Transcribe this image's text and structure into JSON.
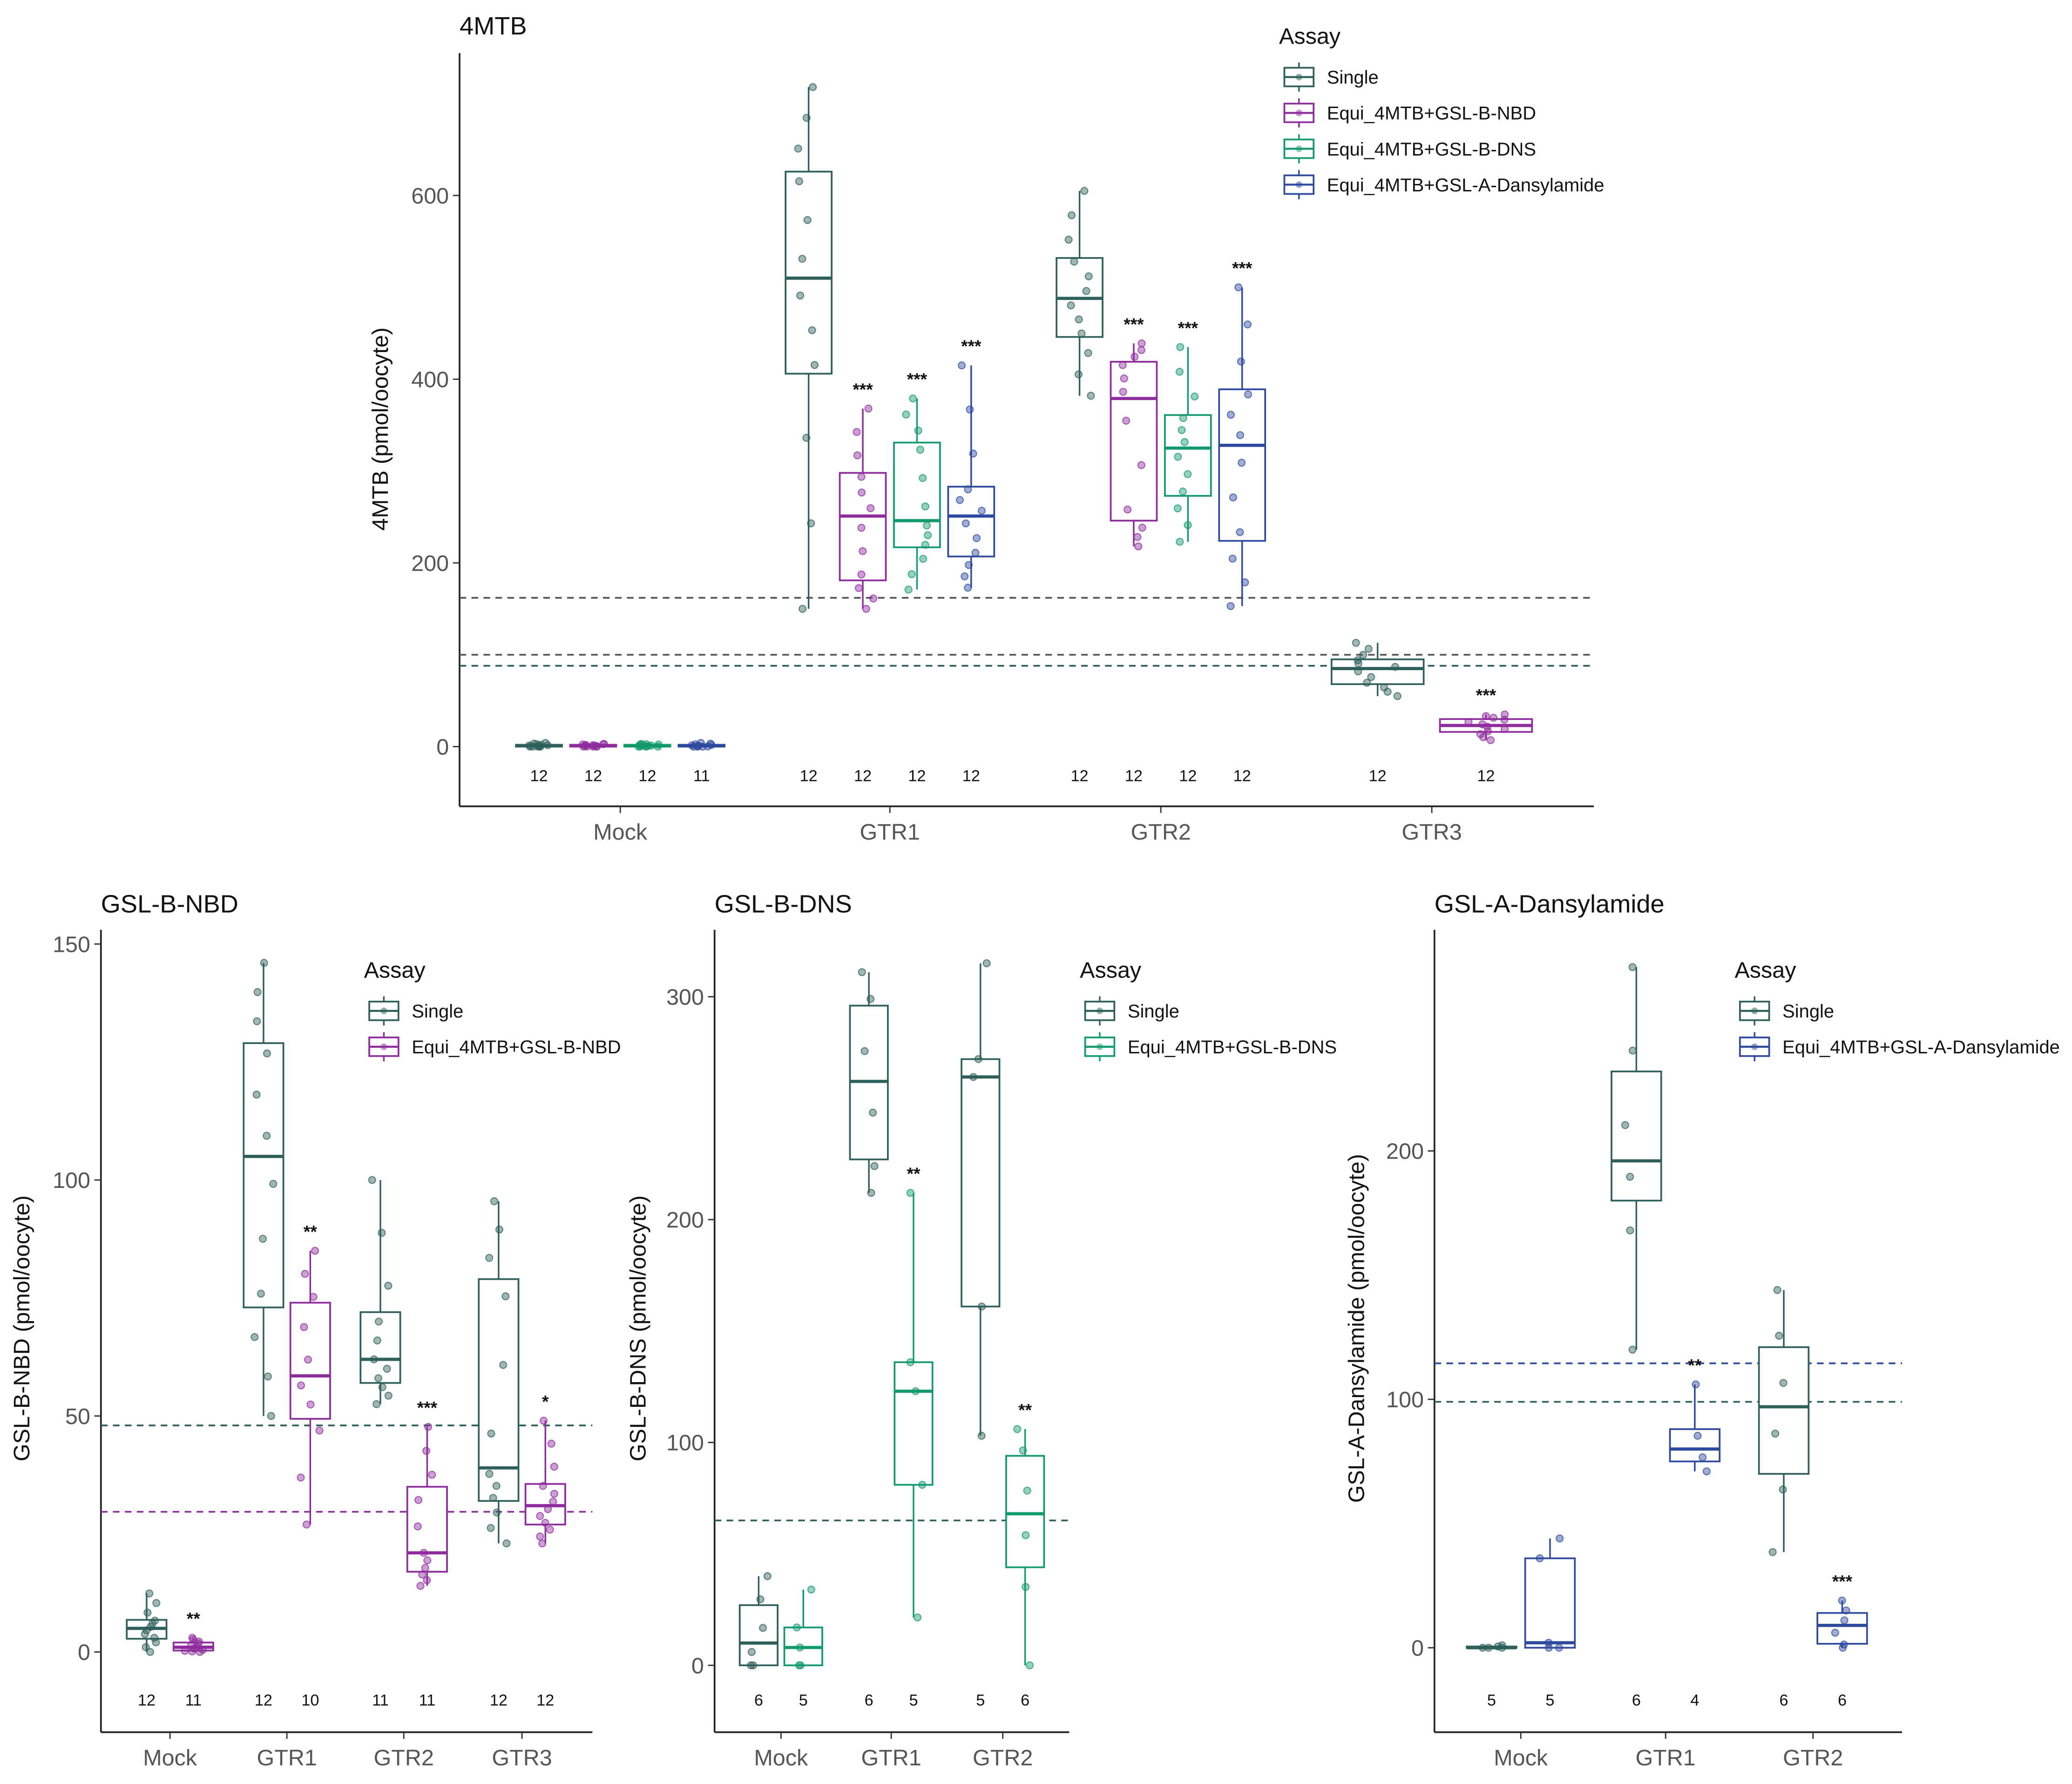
{
  "colors": {
    "Single": "#2f5f5a",
    "Equi_4MTB+GSL-B-NBD": "#8e2c9e",
    "Equi_4MTB+GSL-B-DNS": "#139a6a",
    "Equi_4MTB+GSL-A-Dansylamide": "#2e4a9e",
    "ref_line": "#555555"
  },
  "chart_data": [
    {
      "type": "box",
      "title": "4MTB",
      "ylabel": "4MTB (pmol/oocyte)",
      "xlabel": "",
      "ylim": [
        -65,
        755
      ],
      "yticks": [
        0,
        200,
        400,
        600
      ],
      "categories": [
        "Mock",
        "GTR1",
        "GTR2",
        "GTR3"
      ],
      "legend": {
        "title": "Assay",
        "position": "top-right",
        "entries": [
          "Single",
          "Equi_4MTB+GSL-B-NBD",
          "Equi_4MTB+GSL-B-DNS",
          "Equi_4MTB+GSL-A-Dansylamide"
        ]
      },
      "reference_lines": [
        {
          "y": 162,
          "series": "ref"
        },
        {
          "y": 100,
          "series": "ref"
        },
        {
          "y": 88,
          "series": "Single"
        }
      ],
      "groups": [
        {
          "category": "Mock",
          "boxes": [
            {
              "series": "Single",
              "min": 0,
              "q1": 0,
              "median": 1,
              "q3": 2,
              "max": 4,
              "n": 12,
              "sig": ""
            },
            {
              "series": "Equi_4MTB+GSL-B-NBD",
              "min": 0,
              "q1": 0,
              "median": 1,
              "q3": 2,
              "max": 3,
              "n": 12,
              "sig": ""
            },
            {
              "series": "Equi_4MTB+GSL-B-DNS",
              "min": 0,
              "q1": 0,
              "median": 1,
              "q3": 2,
              "max": 3,
              "n": 12,
              "sig": ""
            },
            {
              "series": "Equi_4MTB+GSL-A-Dansylamide",
              "min": 0,
              "q1": 0,
              "median": 1,
              "q3": 2,
              "max": 4,
              "n": 11,
              "sig": ""
            }
          ]
        },
        {
          "category": "GTR1",
          "boxes": [
            {
              "series": "Single",
              "min": 150,
              "q1": 406,
              "median": 510,
              "q3": 626,
              "max": 718,
              "n": 12,
              "sig": ""
            },
            {
              "series": "Equi_4MTB+GSL-B-NBD",
              "min": 150,
              "q1": 181,
              "median": 251,
              "q3": 298,
              "max": 368,
              "n": 12,
              "sig": "***"
            },
            {
              "series": "Equi_4MTB+GSL-B-DNS",
              "min": 171,
              "q1": 217,
              "median": 246,
              "q3": 331,
              "max": 379,
              "n": 12,
              "sig": "***"
            },
            {
              "series": "Equi_4MTB+GSL-A-Dansylamide",
              "min": 173,
              "q1": 207,
              "median": 251,
              "q3": 283,
              "max": 415,
              "n": 12,
              "sig": "***"
            }
          ]
        },
        {
          "category": "GTR2",
          "boxes": [
            {
              "series": "Single",
              "min": 382,
              "q1": 446,
              "median": 488,
              "q3": 532,
              "max": 605,
              "n": 12,
              "sig": ""
            },
            {
              "series": "Equi_4MTB+GSL-B-NBD",
              "min": 218,
              "q1": 246,
              "median": 379,
              "q3": 419,
              "max": 439,
              "n": 12,
              "sig": "***"
            },
            {
              "series": "Equi_4MTB+GSL-B-DNS",
              "min": 223,
              "q1": 273,
              "median": 325,
              "q3": 361,
              "max": 435,
              "n": 12,
              "sig": "***"
            },
            {
              "series": "Equi_4MTB+GSL-A-Dansylamide",
              "min": 153,
              "q1": 224,
              "median": 328,
              "q3": 389,
              "max": 500,
              "n": 12,
              "sig": "***"
            }
          ]
        },
        {
          "category": "GTR3",
          "boxes": [
            {
              "series": "Single",
              "min": 55,
              "q1": 68,
              "median": 85,
              "q3": 95,
              "max": 113,
              "n": 12,
              "sig": ""
            },
            {
              "series": "Equi_4MTB+GSL-B-NBD",
              "min": 7,
              "q1": 16,
              "median": 23,
              "q3": 30,
              "max": 35,
              "n": 12,
              "sig": "***"
            }
          ]
        }
      ]
    },
    {
      "type": "box",
      "title": "GSL-B-NBD",
      "ylabel": "GSL-B-NBD (pmol/oocyte)",
      "xlabel": "",
      "ylim": [
        -17,
        153
      ],
      "yticks": [
        0,
        50,
        100,
        150
      ],
      "categories": [
        "Mock",
        "GTR1",
        "GTR2",
        "GTR3"
      ],
      "legend": {
        "title": "Assay",
        "position": "top-right",
        "entries": [
          "Single",
          "Equi_4MTB+GSL-B-NBD"
        ]
      },
      "reference_lines": [
        {
          "y": 48,
          "series": "Single"
        },
        {
          "y": 29.7,
          "series": "Equi_4MTB+GSL-B-NBD"
        }
      ],
      "groups": [
        {
          "category": "Mock",
          "boxes": [
            {
              "series": "Single",
              "min": 0,
              "q1": 2.8,
              "median": 5,
              "q3": 6.8,
              "max": 12.4,
              "n": 12,
              "sig": ""
            },
            {
              "series": "Equi_4MTB+GSL-B-NBD",
              "min": 0,
              "q1": 0.3,
              "median": 1,
              "q3": 2,
              "max": 3,
              "n": 11,
              "sig": "**"
            }
          ]
        },
        {
          "category": "GTR1",
          "boxes": [
            {
              "series": "Single",
              "min": 50,
              "q1": 73,
              "median": 105,
              "q3": 129,
              "max": 146,
              "n": 12,
              "sig": ""
            },
            {
              "series": "Equi_4MTB+GSL-B-NBD",
              "min": 27,
              "q1": 49.4,
              "median": 58.5,
              "q3": 74,
              "max": 85,
              "n": 10,
              "sig": "**"
            }
          ]
        },
        {
          "category": "GTR2",
          "boxes": [
            {
              "series": "Single",
              "min": 52.5,
              "q1": 57,
              "median": 62,
              "q3": 72,
              "max": 100,
              "n": 11,
              "sig": ""
            },
            {
              "series": "Equi_4MTB+GSL-B-NBD",
              "min": 14,
              "q1": 17,
              "median": 21,
              "q3": 35,
              "max": 47.7,
              "n": 11,
              "sig": "***"
            }
          ]
        },
        {
          "category": "GTR3",
          "boxes": [
            {
              "series": "Single",
              "min": 23,
              "q1": 32,
              "median": 39,
              "q3": 79,
              "max": 95.5,
              "n": 12,
              "sig": ""
            },
            {
              "series": "Equi_4MTB+GSL-B-NBD",
              "min": 23,
              "q1": 27,
              "median": 31,
              "q3": 35.6,
              "max": 49,
              "n": 12,
              "sig": "*"
            }
          ]
        }
      ]
    },
    {
      "type": "box",
      "title": "GSL-B-DNS",
      "ylabel": "GSL-B-DNS (pmol/oocyte)",
      "xlabel": "",
      "ylim": [
        -30,
        330
      ],
      "yticks": [
        0,
        100,
        200,
        300
      ],
      "categories": [
        "Mock",
        "GTR1",
        "GTR2"
      ],
      "legend": {
        "title": "Assay",
        "position": "top-right",
        "entries": [
          "Single",
          "Equi_4MTB+GSL-B-DNS"
        ]
      },
      "reference_lines": [
        {
          "y": 65,
          "series": "Single"
        }
      ],
      "groups": [
        {
          "category": "Mock",
          "boxes": [
            {
              "series": "Single",
              "min": 0,
              "q1": 0,
              "median": 10,
              "q3": 27,
              "max": 40,
              "n": 6,
              "sig": ""
            },
            {
              "series": "Equi_4MTB+GSL-B-DNS",
              "min": 0,
              "q1": 0,
              "median": 8,
              "q3": 17,
              "max": 34,
              "n": 5,
              "sig": ""
            }
          ]
        },
        {
          "category": "GTR1",
          "boxes": [
            {
              "series": "Single",
              "min": 212,
              "q1": 227,
              "median": 262,
              "q3": 296,
              "max": 311,
              "n": 6,
              "sig": ""
            },
            {
              "series": "Equi_4MTB+GSL-B-DNS",
              "min": 21.5,
              "q1": 81,
              "median": 123,
              "q3": 136,
              "max": 212,
              "n": 5,
              "sig": "**"
            }
          ]
        },
        {
          "category": "GTR2",
          "boxes": [
            {
              "series": "Single",
              "min": 103,
              "q1": 161,
              "median": 264,
              "q3": 272,
              "max": 315,
              "n": 5,
              "sig": ""
            },
            {
              "series": "Equi_4MTB+GSL-B-DNS",
              "min": 0,
              "q1": 44,
              "median": 68,
              "q3": 94,
              "max": 106,
              "n": 6,
              "sig": "**"
            }
          ]
        }
      ]
    },
    {
      "type": "box",
      "title": "GSL-A-Dansylamide",
      "ylabel": "GSL-A-Dansylamide (pmol/oocyte)",
      "xlabel": "",
      "ylim": [
        -34,
        289
      ],
      "yticks": [
        0,
        100,
        200
      ],
      "categories": [
        "Mock",
        "GTR1",
        "GTR2"
      ],
      "legend": {
        "title": "Assay",
        "position": "top-right",
        "entries": [
          "Single",
          "Equi_4MTB+GSL-A-Dansylamide"
        ]
      },
      "reference_lines": [
        {
          "y": 114.5,
          "series": "Equi_4MTB+GSL-A-Dansylamide"
        },
        {
          "y": 99,
          "series": "Single"
        }
      ],
      "groups": [
        {
          "category": "Mock",
          "boxes": [
            {
              "series": "Single",
              "min": 0,
              "q1": 0,
              "median": 0,
              "q3": 0.5,
              "max": 1,
              "n": 5,
              "sig": ""
            },
            {
              "series": "Equi_4MTB+GSL-A-Dansylamide",
              "min": 0,
              "q1": 0,
              "median": 2,
              "q3": 36,
              "max": 44,
              "n": 5,
              "sig": ""
            }
          ]
        },
        {
          "category": "GTR1",
          "boxes": [
            {
              "series": "Single",
              "min": 120,
              "q1": 180,
              "median": 196,
              "q3": 232,
              "max": 274,
              "n": 6,
              "sig": ""
            },
            {
              "series": "Equi_4MTB+GSL-A-Dansylamide",
              "min": 71,
              "q1": 75,
              "median": 80,
              "q3": 88,
              "max": 106,
              "n": 4,
              "sig": "**"
            }
          ]
        },
        {
          "category": "GTR2",
          "boxes": [
            {
              "series": "Single",
              "min": 38.5,
              "q1": 70,
              "median": 97,
              "q3": 121,
              "max": 144,
              "n": 6,
              "sig": ""
            },
            {
              "series": "Equi_4MTB+GSL-A-Dansylamide",
              "min": 0,
              "q1": 1.6,
              "median": 9,
              "q3": 14,
              "max": 19,
              "n": 6,
              "sig": "***"
            }
          ]
        }
      ]
    }
  ]
}
